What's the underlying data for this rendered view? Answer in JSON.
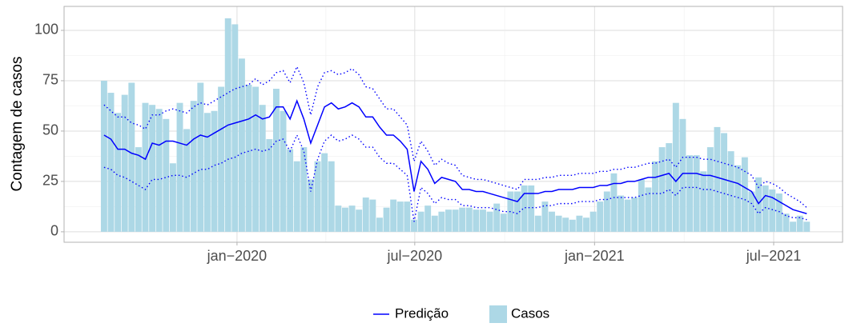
{
  "chart_data": {
    "type": "bar",
    "y_label": "Contagem de casos",
    "x": [
      0,
      1,
      2,
      3,
      4,
      5,
      6,
      7,
      8,
      9,
      10,
      11,
      12,
      13,
      14,
      15,
      16,
      17,
      18,
      19,
      20,
      21,
      22,
      23,
      24,
      25,
      26,
      27,
      28,
      29,
      30,
      31,
      32,
      33,
      34,
      35,
      36,
      37,
      38,
      39,
      40,
      41,
      42,
      43,
      44,
      45,
      46,
      47,
      48,
      49,
      50,
      51,
      52,
      53,
      54,
      55,
      56,
      57,
      58,
      59,
      60,
      61,
      62,
      63,
      64,
      65,
      66,
      67,
      68,
      69,
      70,
      71,
      72,
      73,
      74,
      75,
      76,
      77,
      78,
      79,
      80,
      81,
      82,
      83,
      84,
      85,
      86,
      87,
      88,
      89,
      90,
      91,
      92,
      93,
      94,
      95,
      96,
      97,
      98,
      99,
      100,
      101,
      102
    ],
    "series": [
      {
        "name": "Casos",
        "type": "bar",
        "color": "#add8e6",
        "values": [
          75,
          69,
          59,
          68,
          74,
          42,
          64,
          63,
          61,
          56,
          34,
          64,
          51,
          65,
          74,
          59,
          60,
          72,
          106,
          103,
          86,
          73,
          72,
          63,
          46,
          71,
          60,
          41,
          35,
          42,
          26,
          35,
          39,
          35,
          13,
          12,
          13,
          11,
          17,
          16,
          7,
          12,
          16,
          15,
          15,
          6,
          10,
          13,
          8,
          10,
          11,
          11,
          12,
          12,
          11,
          11,
          10,
          14,
          9,
          20,
          20,
          23,
          23,
          8,
          15,
          10,
          8,
          7,
          6,
          8,
          7,
          10,
          15,
          20,
          29,
          18,
          16,
          17,
          26,
          22,
          35,
          42,
          44,
          64,
          56,
          38,
          38,
          30,
          42,
          52,
          49,
          40,
          33,
          37,
          20,
          27,
          23,
          21,
          19,
          9,
          5,
          8,
          5
        ]
      },
      {
        "name": "Predição",
        "type": "line",
        "color": "#0000ff",
        "values": [
          48,
          46,
          41,
          41,
          39,
          38,
          36,
          44,
          43,
          45,
          45,
          44,
          43,
          46,
          48,
          47,
          49,
          51,
          53,
          54,
          55,
          56,
          58,
          56,
          57,
          62,
          62,
          56,
          65,
          56,
          44,
          53,
          62,
          64,
          61,
          62,
          64,
          62,
          57,
          57,
          52,
          48,
          48,
          45,
          41,
          20,
          35,
          31,
          24,
          27,
          26,
          25,
          21,
          21,
          20,
          20,
          19,
          18,
          17,
          16,
          15,
          19,
          19,
          19,
          20,
          20,
          21,
          21,
          21,
          22,
          22,
          22,
          23,
          23,
          24,
          24,
          25,
          25,
          26,
          27,
          27,
          28,
          29,
          25,
          29,
          29,
          29,
          28,
          28,
          27,
          26,
          25,
          24,
          22,
          20,
          14,
          18,
          17,
          15,
          13,
          11,
          10,
          9
        ],
        "upper": [
          63,
          60,
          57,
          57,
          54,
          53,
          51,
          58,
          58,
          60,
          61,
          60,
          59,
          62,
          64,
          63,
          65,
          67,
          69,
          71,
          72,
          73,
          76,
          73,
          75,
          79,
          80,
          74,
          82,
          74,
          58,
          72,
          79,
          80,
          78,
          79,
          81,
          78,
          72,
          71,
          66,
          61,
          61,
          57,
          53,
          35,
          45,
          40,
          33,
          36,
          34,
          33,
          28,
          27,
          26,
          26,
          25,
          24,
          23,
          22,
          21,
          26,
          26,
          26,
          27,
          27,
          28,
          28,
          28,
          29,
          29,
          29,
          30,
          30,
          31,
          31,
          32,
          32,
          33,
          34,
          34,
          35,
          36,
          32,
          37,
          37,
          37,
          36,
          36,
          35,
          34,
          33,
          32,
          30,
          28,
          22,
          25,
          24,
          22,
          19,
          17,
          15,
          12
        ],
        "lower": [
          32,
          31,
          28,
          27,
          25,
          23,
          21,
          26,
          26,
          27,
          28,
          28,
          27,
          29,
          31,
          31,
          33,
          34,
          36,
          37,
          39,
          40,
          41,
          40,
          41,
          45,
          46,
          40,
          48,
          40,
          20,
          36,
          45,
          48,
          45,
          46,
          48,
          46,
          42,
          42,
          37,
          34,
          34,
          31,
          28,
          5,
          22,
          19,
          14,
          17,
          16,
          16,
          13,
          13,
          12,
          12,
          12,
          11,
          10,
          10,
          9,
          12,
          12,
          12,
          13,
          13,
          14,
          14,
          14,
          15,
          15,
          15,
          16,
          16,
          17,
          17,
          17,
          17,
          18,
          19,
          19,
          19,
          21,
          18,
          22,
          22,
          22,
          21,
          21,
          20,
          19,
          18,
          17,
          16,
          14,
          9,
          12,
          11,
          10,
          8,
          7,
          7,
          6
        ]
      }
    ],
    "xlim": [
      -5.8,
      107.2
    ],
    "xticks": [
      {
        "value": 19.3,
        "label": "jan−2020"
      },
      {
        "value": 45.1,
        "label": "jul−2020"
      },
      {
        "value": 71.2,
        "label": "jan−2021"
      },
      {
        "value": 97.2,
        "label": "jul−2021"
      }
    ],
    "ylim": [
      -5.2,
      111.9
    ],
    "yticks": [
      0,
      25,
      50,
      75,
      100
    ],
    "grid": true,
    "legend": "bottom"
  }
}
